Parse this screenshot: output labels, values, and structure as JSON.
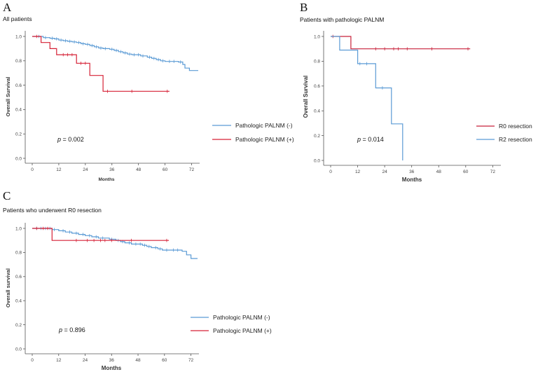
{
  "panels": [
    {
      "letter": "A",
      "title": "All patients",
      "xlabel": "Months",
      "ylabel": "Overall Survival",
      "p_italic": "p",
      "p_rest": " = 0.002",
      "legend": [
        "Pathologic PALNM (-)",
        "Pathologic PALNM (+)"
      ]
    },
    {
      "letter": "B",
      "title": "Patients with pathologic PALNM",
      "xlabel": "Months",
      "ylabel": "Overall Survival",
      "p_italic": "p",
      "p_rest": " = 0.014",
      "legend": [
        "R0 resection",
        "R2 resection"
      ]
    },
    {
      "letter": "C",
      "title": "Patients who underwent R0 resection",
      "xlabel": "Months",
      "ylabel": "Overall survival",
      "p_italic": "p",
      "p_rest": " = 0.896",
      "legend": [
        "Pathologic PALNM (-)",
        "Pathologic PALNM (+)"
      ]
    }
  ],
  "chart_data": [
    {
      "type": "line",
      "subtype": "kaplan-meier",
      "title": "All patients",
      "xlabel": "Months",
      "ylabel": "Overall Survival",
      "xlim": [
        0,
        75
      ],
      "ylim": [
        0,
        1.0
      ],
      "xticks": [
        0,
        12,
        24,
        36,
        48,
        60,
        72
      ],
      "yticks": [
        0.0,
        0.2,
        0.4,
        0.6,
        0.8,
        1.0
      ],
      "annotation": "p = 0.002",
      "legend_position": "bottom-right",
      "series": [
        {
          "name": "Pathologic PALNM (-)",
          "color": "#5b9bd5",
          "steps": [
            [
              0,
              1.0
            ],
            [
              5,
              0.99
            ],
            [
              8,
              0.985
            ],
            [
              10,
              0.98
            ],
            [
              12,
              0.97
            ],
            [
              14,
              0.965
            ],
            [
              16,
              0.96
            ],
            [
              18,
              0.955
            ],
            [
              20,
              0.95
            ],
            [
              22,
              0.94
            ],
            [
              24,
              0.935
            ],
            [
              26,
              0.925
            ],
            [
              28,
              0.915
            ],
            [
              30,
              0.905
            ],
            [
              32,
              0.9
            ],
            [
              35,
              0.895
            ],
            [
              37,
              0.885
            ],
            [
              39,
              0.875
            ],
            [
              41,
              0.865
            ],
            [
              43,
              0.855
            ],
            [
              45,
              0.85
            ],
            [
              49,
              0.84
            ],
            [
              52,
              0.83
            ],
            [
              54,
              0.82
            ],
            [
              56,
              0.81
            ],
            [
              58,
              0.8
            ],
            [
              60,
              0.795
            ],
            [
              66,
              0.79
            ],
            [
              68,
              0.77
            ],
            [
              69,
              0.74
            ],
            [
              71,
              0.72
            ],
            [
              75,
              0.72
            ]
          ],
          "censored": [
            3,
            6,
            9,
            11,
            13,
            15,
            17,
            19,
            21,
            23,
            25,
            27,
            29,
            31,
            33,
            36,
            38,
            40,
            42,
            44,
            46,
            48,
            50,
            53,
            55,
            57,
            59,
            62,
            64,
            67
          ]
        },
        {
          "name": "Pathologic PALNM (+)",
          "color": "#d62136",
          "steps": [
            [
              0,
              1.0
            ],
            [
              4,
              0.95
            ],
            [
              8,
              0.9
            ],
            [
              11,
              0.85
            ],
            [
              20,
              0.78
            ],
            [
              26,
              0.68
            ],
            [
              32,
              0.55
            ],
            [
              62,
              0.55
            ]
          ],
          "censored": [
            2,
            14,
            16,
            18,
            22,
            24,
            34,
            45,
            61
          ]
        }
      ]
    },
    {
      "type": "line",
      "subtype": "kaplan-meier",
      "title": "Patients with pathologic PALNM",
      "xlabel": "Months",
      "ylabel": "Overall Survival",
      "xlim": [
        0,
        75
      ],
      "ylim": [
        0,
        1.0
      ],
      "xticks": [
        0,
        12,
        24,
        36,
        48,
        60,
        72
      ],
      "yticks": [
        0.0,
        0.2,
        0.4,
        0.6,
        0.8,
        1.0
      ],
      "annotation": "p = 0.014",
      "legend_position": "bottom-right",
      "series": [
        {
          "name": "R0 resection",
          "color": "#c8213a",
          "steps": [
            [
              0,
              1.0
            ],
            [
              9,
              0.9
            ],
            [
              62,
              0.9
            ]
          ],
          "censored": [
            1,
            20,
            24,
            28,
            30,
            34,
            45,
            61
          ]
        },
        {
          "name": "R2 resection",
          "color": "#5b9bd5",
          "steps": [
            [
              0,
              1.0
            ],
            [
              4,
              0.89
            ],
            [
              12,
              0.78
            ],
            [
              20,
              0.585
            ],
            [
              27,
              0.295
            ],
            [
              32,
              0.0
            ]
          ],
          "censored": [
            13,
            16,
            23
          ]
        }
      ]
    },
    {
      "type": "line",
      "subtype": "kaplan-meier",
      "title": "Patients who underwent R0 resection",
      "xlabel": "Months",
      "ylabel": "Overall survival",
      "xlim": [
        0,
        75
      ],
      "ylim": [
        0,
        1.0
      ],
      "xticks": [
        0,
        12,
        24,
        36,
        48,
        60,
        72
      ],
      "yticks": [
        0.0,
        0.2,
        0.4,
        0.6,
        0.8,
        1.0
      ],
      "annotation": "p = 0.896",
      "legend_position": "bottom-right",
      "series": [
        {
          "name": "Pathologic PALNM (-)",
          "color": "#5b9bd5",
          "steps": [
            [
              0,
              1.0
            ],
            [
              9,
              0.99
            ],
            [
              12,
              0.98
            ],
            [
              15,
              0.97
            ],
            [
              18,
              0.96
            ],
            [
              21,
              0.95
            ],
            [
              24,
              0.94
            ],
            [
              27,
              0.93
            ],
            [
              30,
              0.92
            ],
            [
              35,
              0.91
            ],
            [
              38,
              0.9
            ],
            [
              40,
              0.89
            ],
            [
              42,
              0.88
            ],
            [
              45,
              0.87
            ],
            [
              50,
              0.86
            ],
            [
              52,
              0.85
            ],
            [
              54,
              0.84
            ],
            [
              57,
              0.83
            ],
            [
              59,
              0.82
            ],
            [
              68,
              0.81
            ],
            [
              70,
              0.78
            ],
            [
              72,
              0.75
            ],
            [
              75,
              0.75
            ]
          ],
          "censored": [
            2,
            4,
            6,
            8,
            10,
            14,
            17,
            20,
            23,
            26,
            29,
            32,
            36,
            39,
            41,
            44,
            47,
            49,
            51,
            53,
            56,
            58,
            61,
            64,
            66
          ]
        },
        {
          "name": "Pathologic PALNM (+)",
          "color": "#d62136",
          "steps": [
            [
              0,
              1.0
            ],
            [
              9,
              0.9
            ],
            [
              62,
              0.9
            ]
          ],
          "censored": [
            2,
            5,
            7,
            20,
            25,
            28,
            31,
            33,
            36,
            45,
            61
          ]
        }
      ]
    }
  ]
}
